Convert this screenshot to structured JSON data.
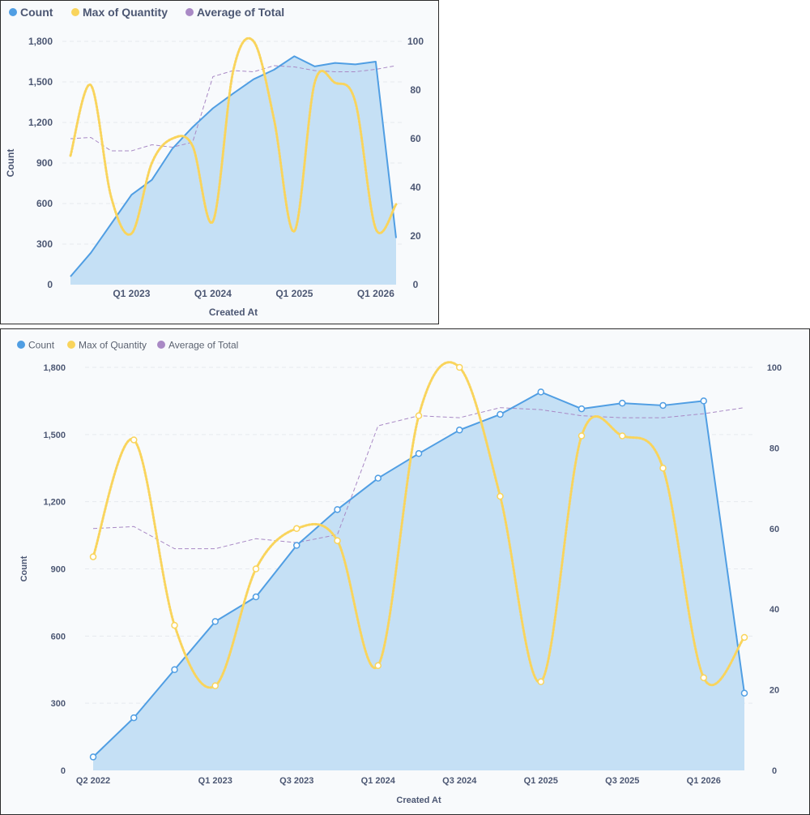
{
  "chart_data": [
    {
      "id": "small",
      "type": "line",
      "legend_position": "top-left",
      "xlabel": "Created At",
      "ylabel": "Count",
      "ylim": [
        0,
        1800
      ],
      "y2lim": [
        0,
        100
      ],
      "y_ticks": [
        "0",
        "300",
        "600",
        "900",
        "1,200",
        "1,500",
        "1,800"
      ],
      "y2_ticks": [
        "0",
        "20",
        "40",
        "60",
        "80",
        "100"
      ],
      "x_tick_labels": [
        "Q1 2023",
        "Q1 2024",
        "Q1 2025",
        "Q1 2026"
      ],
      "x": [
        "Q2 2022",
        "Q3 2022",
        "Q4 2022",
        "Q1 2023",
        "Q2 2023",
        "Q3 2023",
        "Q4 2023",
        "Q1 2024",
        "Q2 2024",
        "Q3 2024",
        "Q4 2024",
        "Q1 2025",
        "Q2 2025",
        "Q3 2025",
        "Q4 2025",
        "Q1 2026",
        "Q2 2026"
      ],
      "grid": true,
      "show_markers": false,
      "series": [
        {
          "name": "Count",
          "type": "area",
          "axis": "left",
          "color": "#509ee3",
          "values": [
            60,
            235,
            450,
            665,
            775,
            1005,
            1165,
            1305,
            1415,
            1520,
            1590,
            1690,
            1615,
            1640,
            1630,
            1650,
            345
          ]
        },
        {
          "name": "Max of Quantity",
          "type": "line-dotted-smooth",
          "axis": "right",
          "color": "#f9d45c",
          "values": [
            53,
            82,
            36,
            21,
            50,
            60,
            57,
            26,
            88,
            100,
            68,
            22,
            83,
            83,
            75,
            23,
            33
          ]
        },
        {
          "name": "Average of Total",
          "type": "line-dashed",
          "axis": "right",
          "color": "#a989c5",
          "values": [
            60,
            60.5,
            55,
            55,
            57.5,
            56.5,
            58.5,
            85.5,
            88,
            87.5,
            90,
            89.5,
            88,
            87.5,
            87.5,
            88.5,
            90
          ]
        }
      ]
    },
    {
      "id": "large",
      "type": "line",
      "legend_position": "top-left",
      "xlabel": "Created At",
      "ylabel": "Count",
      "ylim": [
        0,
        1800
      ],
      "y2lim": [
        0,
        100
      ],
      "y_ticks": [
        "0",
        "300",
        "600",
        "900",
        "1,200",
        "1,500",
        "1,800"
      ],
      "y2_ticks": [
        "0",
        "20",
        "40",
        "60",
        "80",
        "100"
      ],
      "x_tick_labels": [
        "Q2 2022",
        "Q1 2023",
        "Q3 2023",
        "Q1 2024",
        "Q3 2024",
        "Q1 2025",
        "Q3 2025",
        "Q1 2026"
      ],
      "x": [
        "Q2 2022",
        "Q3 2022",
        "Q4 2022",
        "Q1 2023",
        "Q2 2023",
        "Q3 2023",
        "Q4 2023",
        "Q1 2024",
        "Q2 2024",
        "Q3 2024",
        "Q4 2024",
        "Q1 2025",
        "Q2 2025",
        "Q3 2025",
        "Q4 2025",
        "Q1 2026",
        "Q2 2026"
      ],
      "grid": true,
      "show_markers": true,
      "series": [
        {
          "name": "Count",
          "type": "area",
          "axis": "left",
          "color": "#509ee3",
          "values": [
            60,
            235,
            450,
            665,
            775,
            1005,
            1165,
            1305,
            1415,
            1520,
            1590,
            1690,
            1615,
            1640,
            1630,
            1650,
            345
          ]
        },
        {
          "name": "Max of Quantity",
          "type": "line-dotted-smooth",
          "axis": "right",
          "color": "#f9d45c",
          "values": [
            53,
            82,
            36,
            21,
            50,
            60,
            57,
            26,
            88,
            100,
            68,
            22,
            83,
            83,
            75,
            23,
            33
          ]
        },
        {
          "name": "Average of Total",
          "type": "line-dashed",
          "axis": "right",
          "color": "#a989c5",
          "values": [
            60,
            60.5,
            55,
            55,
            57.5,
            56.5,
            58.5,
            85.5,
            88,
            87.5,
            90,
            89.5,
            88,
            87.5,
            87.5,
            88.5,
            90
          ]
        }
      ]
    }
  ]
}
